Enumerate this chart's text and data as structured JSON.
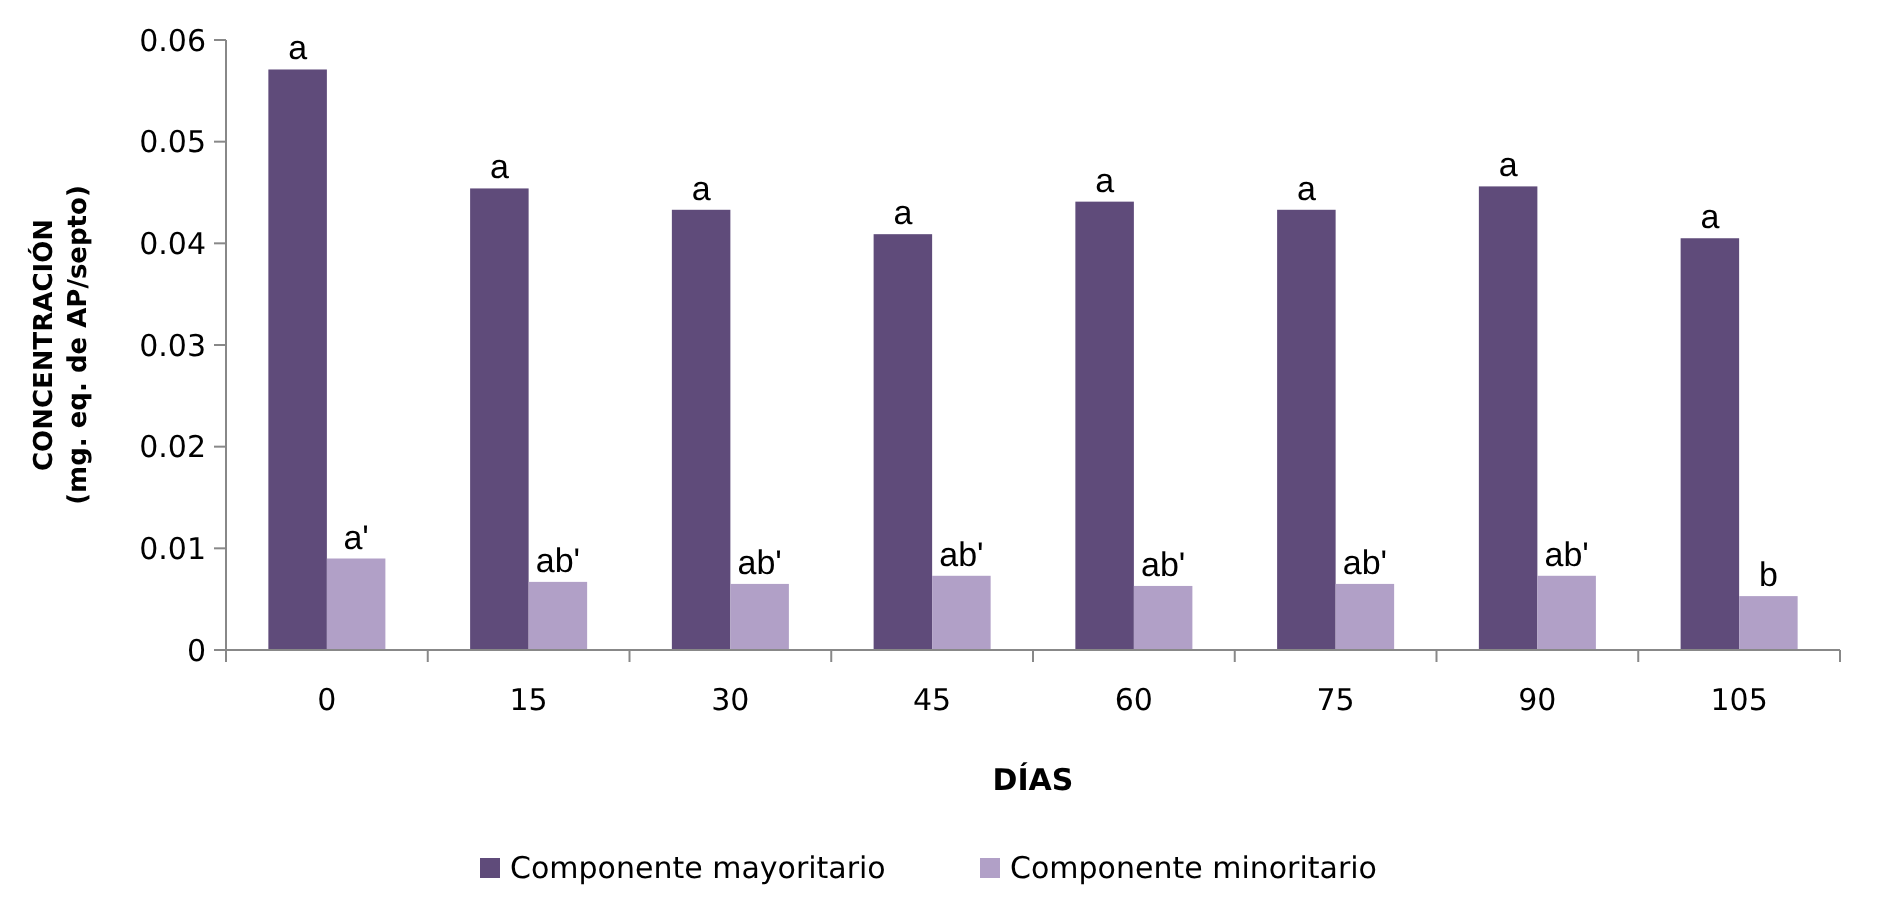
{
  "chart_data": {
    "type": "bar",
    "xlabel": "DÍAS",
    "ylabel": "CONCENTRACIÓN\n(mg. eq. de AP/septo)",
    "categories": [
      "0",
      "15",
      "30",
      "45",
      "60",
      "75",
      "90",
      "105"
    ],
    "series": [
      {
        "name": "Componente mayoritario",
        "color": "#5f4b7a",
        "values": [
          0.0571,
          0.0454,
          0.0433,
          0.0409,
          0.0441,
          0.0433,
          0.0456,
          0.0405
        ]
      },
      {
        "name": "Componente minoritario",
        "color": "#b1a0c7",
        "values": [
          0.009,
          0.0067,
          0.0065,
          0.0073,
          0.0063,
          0.0065,
          0.0073,
          0.0053
        ]
      }
    ],
    "ylim": [
      0,
      0.06
    ],
    "yticks": [
      0,
      0.01,
      0.02,
      0.03,
      0.04,
      0.05,
      0.06
    ],
    "grid": false,
    "legend": "bottom",
    "annotations": [
      {
        "text": "a",
        "x": "0",
        "y": 0.0571
      },
      {
        "text": "a",
        "x": "15",
        "y": 0.0454
      },
      {
        "text": "a",
        "x": "30",
        "y": 0.0433
      },
      {
        "text": "a",
        "x": "45",
        "y": 0.0409
      },
      {
        "text": "a",
        "x": "60",
        "y": 0.0441
      },
      {
        "text": "a",
        "x": "75",
        "y": 0.0433
      },
      {
        "text": "a",
        "x": "90",
        "y": 0.0456
      },
      {
        "text": "a",
        "x": "105",
        "y": 0.0405
      },
      {
        "text": "a'",
        "x": "0",
        "y": 0.009
      },
      {
        "text": "ab'",
        "x": "15",
        "y": 0.0067
      },
      {
        "text": "ab'",
        "x": "30",
        "y": 0.0065
      },
      {
        "text": "ab'",
        "x": "45",
        "y": 0.0073
      },
      {
        "text": "ab'",
        "x": "60",
        "y": 0.0063
      },
      {
        "text": "ab'",
        "x": "75",
        "y": 0.0065
      },
      {
        "text": "ab'",
        "x": "90",
        "y": 0.0073
      },
      {
        "text": "b",
        "x": "105",
        "y": 0.0053
      }
    ]
  }
}
